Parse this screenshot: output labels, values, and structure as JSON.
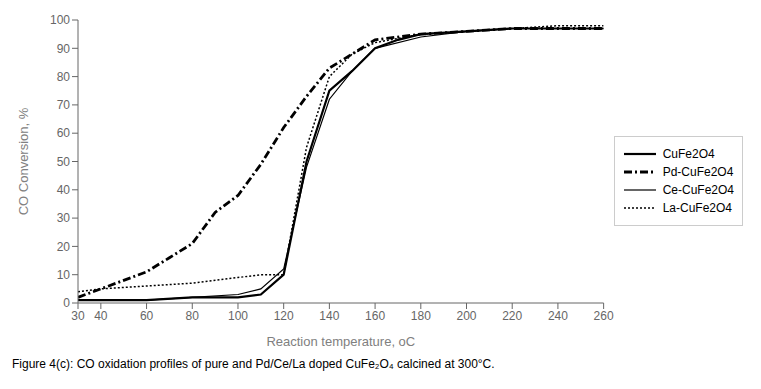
{
  "chart_data": {
    "type": "line",
    "xlabel": "Reaction temperature, oC",
    "ylabel": "CO Conversion, %",
    "caption": "Figure 4(c): CO oxidation profiles of pure and Pd/Ce/La doped CuFe₂O₄ calcined at 300°C.",
    "xlim": [
      30,
      260
    ],
    "ylim": [
      0,
      100
    ],
    "xticks": [
      30,
      40,
      60,
      80,
      100,
      120,
      140,
      160,
      180,
      200,
      220,
      240,
      260
    ],
    "yticks": [
      0,
      10,
      20,
      30,
      40,
      50,
      60,
      70,
      80,
      90,
      100
    ],
    "legend": "right",
    "series": [
      {
        "name": "CuFe2O4",
        "color": "#000000",
        "line_style": "solid",
        "x": [
          30,
          40,
          60,
          80,
          100,
          110,
          120,
          130,
          140,
          150,
          160,
          170,
          180,
          200,
          220,
          240,
          260
        ],
        "values": [
          1,
          1,
          1,
          2,
          2,
          3,
          10,
          50,
          75,
          82,
          90,
          93,
          95,
          96,
          97,
          97,
          97
        ]
      },
      {
        "name": "Pd-CuFe2O4",
        "color": "#000000",
        "line_style": "dashdot",
        "x": [
          30,
          40,
          60,
          70,
          80,
          90,
          100,
          110,
          120,
          130,
          140,
          150,
          160,
          180,
          200,
          220,
          240,
          260
        ],
        "values": [
          2,
          5,
          11,
          16,
          21,
          32,
          38,
          49,
          62,
          73,
          83,
          88,
          93,
          95,
          96,
          97,
          97,
          97
        ]
      },
      {
        "name": "Ce-CuFe2O4",
        "color": "#000000",
        "line_style": "solid",
        "x": [
          30,
          40,
          60,
          80,
          100,
          110,
          120,
          130,
          140,
          150,
          160,
          180,
          200,
          220,
          240,
          260
        ],
        "values": [
          1,
          1,
          1,
          2,
          3,
          5,
          12,
          48,
          72,
          82,
          90,
          94,
          96,
          97,
          97,
          97
        ]
      },
      {
        "name": "La-CuFe2O4",
        "color": "#000000",
        "line_style": "dotted",
        "x": [
          30,
          40,
          60,
          80,
          100,
          110,
          120,
          130,
          140,
          150,
          160,
          180,
          200,
          220,
          240,
          260
        ],
        "values": [
          4,
          5,
          6,
          7,
          9,
          10,
          10,
          55,
          80,
          88,
          92,
          95,
          96,
          97,
          98,
          98
        ]
      }
    ]
  }
}
